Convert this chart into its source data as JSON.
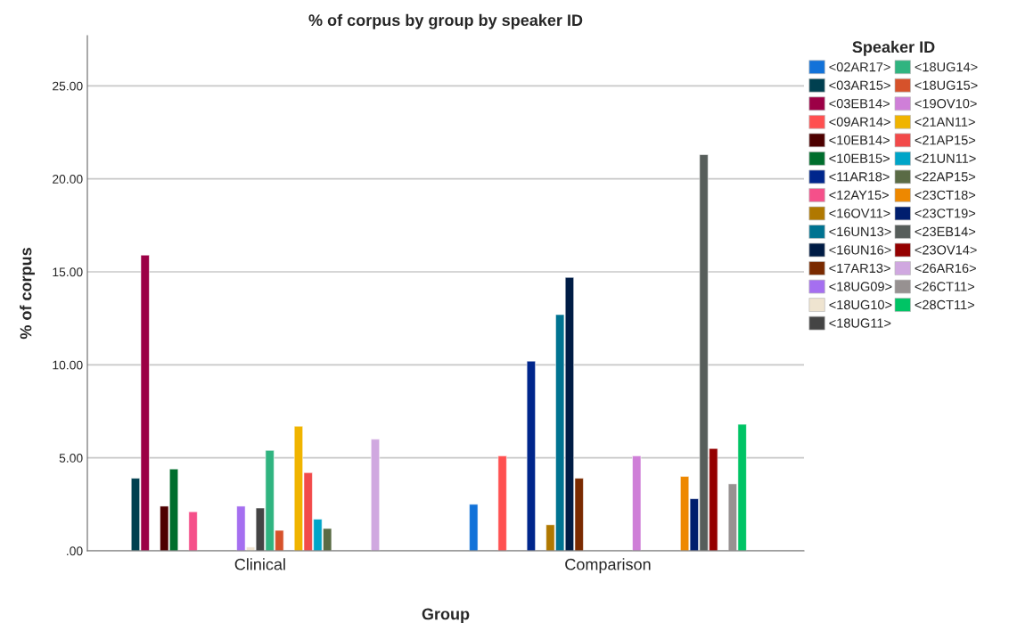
{
  "chart_data": {
    "type": "bar",
    "title": "% of corpus by group by speaker ID",
    "xlabel": "Group",
    "ylabel": "% of corpus",
    "legend_title": "Speaker ID",
    "categories": [
      "Clinical",
      "Comparison"
    ],
    "series": [
      {
        "name": "<02AR17>",
        "color": "#1272d9",
        "values": [
          null,
          2.5
        ]
      },
      {
        "name": "<03AR15>",
        "color": "#004050",
        "values": [
          3.9,
          null
        ]
      },
      {
        "name": "<03EB14>",
        "color": "#9c0046",
        "values": [
          15.9,
          null
        ]
      },
      {
        "name": "<09AR14>",
        "color": "#ff5050",
        "values": [
          null,
          5.1
        ]
      },
      {
        "name": "<10EB14>",
        "color": "#4d0000",
        "values": [
          2.4,
          null
        ]
      },
      {
        "name": "<10EB15>",
        "color": "#006e2d",
        "values": [
          4.4,
          null
        ]
      },
      {
        "name": "<11AR18>",
        "color": "#00268c",
        "values": [
          null,
          10.2
        ]
      },
      {
        "name": "<12AY15>",
        "color": "#f5508a",
        "values": [
          2.1,
          null
        ]
      },
      {
        "name": "<16OV11>",
        "color": "#b07800",
        "values": [
          null,
          1.4
        ]
      },
      {
        "name": "<16UN13>",
        "color": "#007391",
        "values": [
          null,
          12.7
        ]
      },
      {
        "name": "<16UN16>",
        "color": "#001c45",
        "values": [
          null,
          14.7
        ]
      },
      {
        "name": "<17AR13>",
        "color": "#7a2a00",
        "values": [
          null,
          3.9
        ]
      },
      {
        "name": "<18UG09>",
        "color": "#a56ff0",
        "values": [
          2.4,
          null
        ]
      },
      {
        "name": "<18UG10>",
        "color": "#efe4d0",
        "values": [
          0.2,
          null
        ]
      },
      {
        "name": "<18UG11>",
        "color": "#444444",
        "values": [
          2.3,
          null
        ]
      },
      {
        "name": "<18UG14>",
        "color": "#30b480",
        "values": [
          5.4,
          null
        ]
      },
      {
        "name": "<18UG15>",
        "color": "#d6522b",
        "values": [
          1.1,
          null
        ]
      },
      {
        "name": "<19OV10>",
        "color": "#cf7fd8",
        "values": [
          null,
          5.1
        ]
      },
      {
        "name": "<21AN11>",
        "color": "#f0b400",
        "values": [
          6.7,
          null
        ]
      },
      {
        "name": "<21AP15>",
        "color": "#f24a4a",
        "values": [
          4.2,
          null
        ]
      },
      {
        "name": "<21UN11>",
        "color": "#00a5c8",
        "values": [
          1.7,
          null
        ]
      },
      {
        "name": "<22AP15>",
        "color": "#5a6b45",
        "values": [
          1.2,
          null
        ]
      },
      {
        "name": "<23CT18>",
        "color": "#ee8800",
        "values": [
          null,
          4.0
        ]
      },
      {
        "name": "<23CT19>",
        "color": "#001e6e",
        "values": [
          null,
          2.8
        ]
      },
      {
        "name": "<23EB14>",
        "color": "#575e5b",
        "values": [
          null,
          21.3
        ]
      },
      {
        "name": "<23OV14>",
        "color": "#940000",
        "values": [
          null,
          5.5
        ]
      },
      {
        "name": "<26AR16>",
        "color": "#d0a8e0",
        "values": [
          6.0,
          null
        ]
      },
      {
        "name": "<26CT11>",
        "color": "#979191",
        "values": [
          null,
          3.6
        ]
      },
      {
        "name": "<28CT11>",
        "color": "#00c465",
        "values": [
          null,
          6.8
        ]
      }
    ],
    "ylim": [
      0,
      27.7
    ],
    "yticks": [
      {
        "value": 0,
        "label": ".00"
      },
      {
        "value": 5,
        "label": "5.00"
      },
      {
        "value": 10,
        "label": "10.00"
      },
      {
        "value": 15,
        "label": "15.00"
      },
      {
        "value": 20,
        "label": "20.00"
      },
      {
        "value": 25,
        "label": "25.00"
      }
    ],
    "grid": "y",
    "legend": "right"
  }
}
